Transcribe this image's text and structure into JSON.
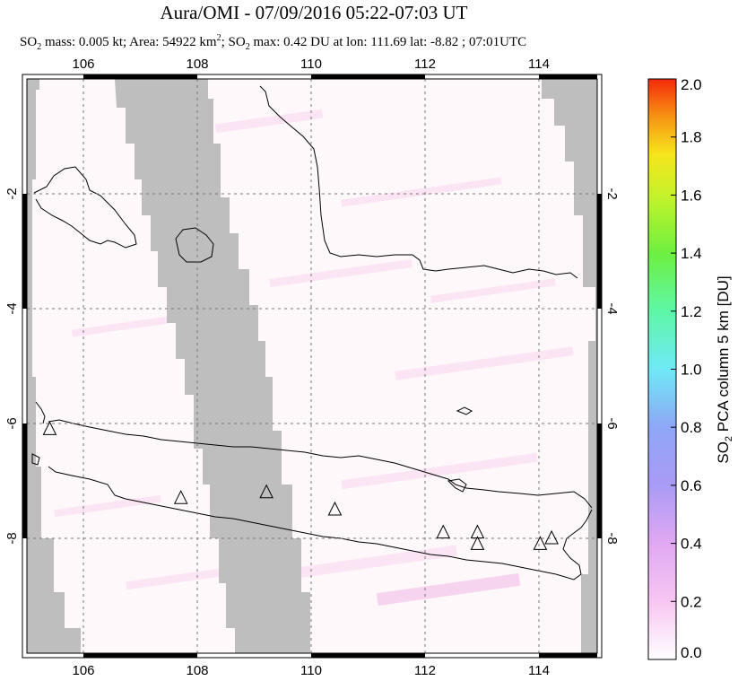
{
  "title": "Aura/OMI - 07/09/2016 05:22-07:03 UT",
  "subtitle": {
    "part1": "SO",
    "sub1": "2",
    "part2": " mass: 0.005 kt; Area: 54922 km",
    "sup1": "2",
    "part3": "; SO",
    "sub2": "2",
    "part4": " max: 0.42 DU at lon: 111.69 lat: -8.82 ; 07:01UTC"
  },
  "map": {
    "lon_range": [
      105.0,
      115.0
    ],
    "lat_range": [
      -10.0,
      0.0
    ],
    "lon_ticks": [
      "106",
      "108",
      "110",
      "112",
      "114"
    ],
    "lat_ticks": [
      "-2",
      "-4",
      "-6",
      "-8"
    ],
    "lat_ticks_right": [
      "-2",
      "-4",
      "-6",
      "-8"
    ],
    "colors": {
      "no_data": "#bebebe",
      "background": "#fff8fb",
      "coast": "#000000"
    },
    "volcanoes": [
      {
        "lon": 105.4,
        "lat": -6.1
      },
      {
        "lon": 107.7,
        "lat": -7.3
      },
      {
        "lon": 109.2,
        "lat": -7.2
      },
      {
        "lon": 110.4,
        "lat": -7.5
      },
      {
        "lon": 112.3,
        "lat": -7.9
      },
      {
        "lon": 112.9,
        "lat": -7.9
      },
      {
        "lon": 112.9,
        "lat": -8.1
      },
      {
        "lon": 114.0,
        "lat": -8.1
      },
      {
        "lon": 114.2,
        "lat": -8.0
      }
    ]
  },
  "colorbar": {
    "label": "SO2 PCA column 5 km [DU]",
    "label_parts": {
      "a": "SO",
      "sub": "2",
      "b": " PCA column 5 km [DU]"
    },
    "ticks": [
      "0.0",
      "0.2",
      "0.4",
      "0.6",
      "0.8",
      "1.0",
      "1.2",
      "1.4",
      "1.6",
      "1.8",
      "2.0"
    ],
    "range": [
      0.0,
      2.0
    ],
    "colors": [
      "#ffffff",
      "#f7c6f2",
      "#c79cf3",
      "#8fa6f6",
      "#6fe9f6",
      "#5ef7a8",
      "#6ef040",
      "#c6f22a",
      "#f6e51c",
      "#f79b13",
      "#f42a0a"
    ]
  }
}
